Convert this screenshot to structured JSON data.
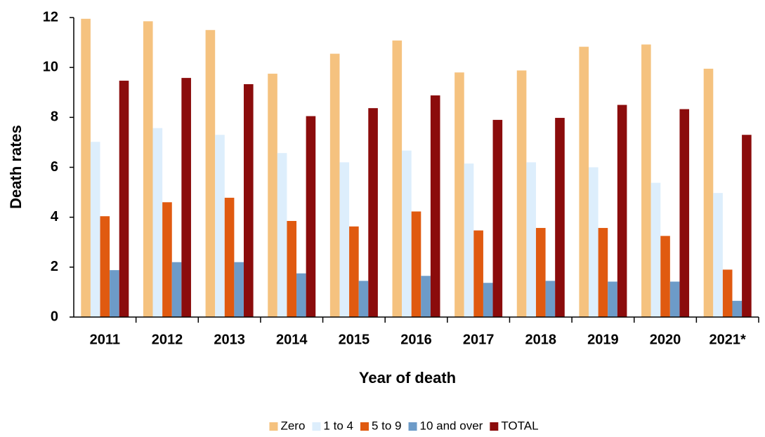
{
  "chart_data": {
    "type": "bar",
    "y_label": "Death rates",
    "x_label": "Year of death",
    "categories": [
      "2011",
      "2012",
      "2013",
      "2014",
      "2015",
      "2016",
      "2017",
      "2018",
      "2019",
      "2020",
      "2021*"
    ],
    "series": [
      {
        "name": "Zero",
        "color": "#f5c27f",
        "values": [
          11.95,
          11.85,
          11.5,
          9.75,
          10.55,
          11.08,
          9.8,
          9.88,
          10.83,
          10.92,
          9.95
        ]
      },
      {
        "name": "1 to 4",
        "color": "#ddeefc",
        "values": [
          7.02,
          7.57,
          7.3,
          6.57,
          6.2,
          6.67,
          6.15,
          6.2,
          6.0,
          5.38,
          4.97
        ]
      },
      {
        "name": "5 to 9",
        "color": "#e05a10",
        "values": [
          4.04,
          4.6,
          4.78,
          3.85,
          3.63,
          4.23,
          3.47,
          3.57,
          3.57,
          3.25,
          1.9
        ]
      },
      {
        "name": "10 and over",
        "color": "#6d9bc8",
        "values": [
          1.88,
          2.2,
          2.2,
          1.75,
          1.45,
          1.65,
          1.37,
          1.45,
          1.42,
          1.42,
          0.65
        ]
      },
      {
        "name": "TOTAL",
        "color": "#8b0c0c",
        "values": [
          9.47,
          9.58,
          9.33,
          8.05,
          8.37,
          8.88,
          7.9,
          7.98,
          8.5,
          8.33,
          7.3
        ]
      }
    ],
    "ylim": [
      0,
      12
    ],
    "yticks": [
      0,
      2,
      4,
      6,
      8,
      10,
      12
    ],
    "grid": false,
    "legend": "bottom"
  }
}
